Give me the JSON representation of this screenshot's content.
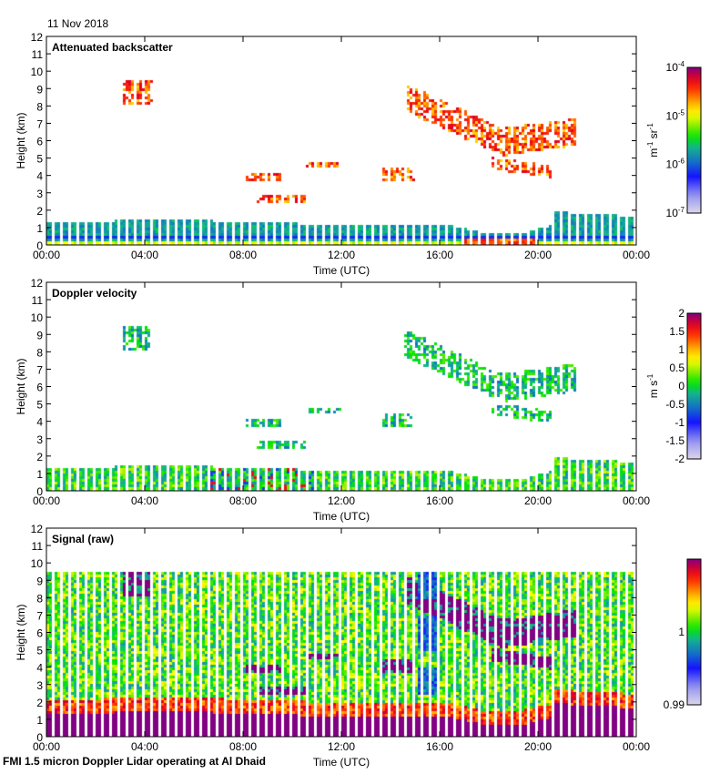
{
  "date_label": "11 Nov 2018",
  "footer_label": "FMI 1.5 micron Doppler Lidar operating at Al Dhaid",
  "chart_data": [
    {
      "type": "heatmap",
      "title": "Attenuated backscatter",
      "xlabel": "Time (UTC)",
      "ylabel": "Height (km)",
      "x_ticks": [
        "00:00",
        "04:00",
        "08:00",
        "12:00",
        "16:00",
        "20:00",
        "00:00"
      ],
      "y_ticks": [
        "0",
        "1",
        "2",
        "3",
        "4",
        "5",
        "6",
        "7",
        "8",
        "9",
        "10",
        "11",
        "12"
      ],
      "ylim": [
        0,
        12
      ],
      "xlim_hours": [
        0,
        24
      ],
      "colorbar": {
        "ticks": [
          "10-7",
          "10-6",
          "10-5",
          "10-4"
        ],
        "label": "m-1 sr-1",
        "scale": "log",
        "range": [
          1e-07,
          0.0001
        ]
      },
      "features": [
        {
          "name": "boundary layer",
          "t_start": 0,
          "t_end": 24,
          "top_km": 1.5
        },
        {
          "name": "cloud",
          "t_start": 3,
          "t_end": 4.3,
          "base_km": 8.0,
          "top_km": 9.6
        },
        {
          "name": "cloud layer",
          "t_start": 15,
          "t_end": 21.5,
          "base_km": 3.5,
          "top_km": 8.5
        }
      ]
    },
    {
      "type": "heatmap",
      "title": "Doppler velocity",
      "xlabel": "Time (UTC)",
      "ylabel": "Height (km)",
      "x_ticks": [
        "00:00",
        "04:00",
        "08:00",
        "12:00",
        "16:00",
        "20:00",
        "00:00"
      ],
      "y_ticks": [
        "0",
        "1",
        "2",
        "3",
        "4",
        "5",
        "6",
        "7",
        "8",
        "9",
        "10",
        "11",
        "12"
      ],
      "ylim": [
        0,
        12
      ],
      "xlim_hours": [
        0,
        24
      ],
      "colorbar": {
        "ticks": [
          "-2",
          "-1.5",
          "-1",
          "-0.5",
          "0",
          "0.5",
          "1",
          "1.5",
          "2"
        ],
        "label": "m s-1",
        "range": [
          -2,
          2
        ]
      }
    },
    {
      "type": "heatmap",
      "title": "Signal (raw)",
      "xlabel": "Time (UTC)",
      "ylabel": "Height (km)",
      "x_ticks": [
        "00:00",
        "04:00",
        "08:00",
        "12:00",
        "16:00",
        "20:00",
        "00:00"
      ],
      "y_ticks": [
        "0",
        "1",
        "2",
        "3",
        "4",
        "5",
        "6",
        "7",
        "8",
        "9",
        "10",
        "11",
        "12"
      ],
      "ylim": [
        0,
        12
      ],
      "xlim_hours": [
        0,
        24
      ],
      "colorbar": {
        "ticks": [
          "0.99",
          "1"
        ],
        "label": "",
        "range": [
          0.99,
          1.01
        ]
      }
    }
  ]
}
